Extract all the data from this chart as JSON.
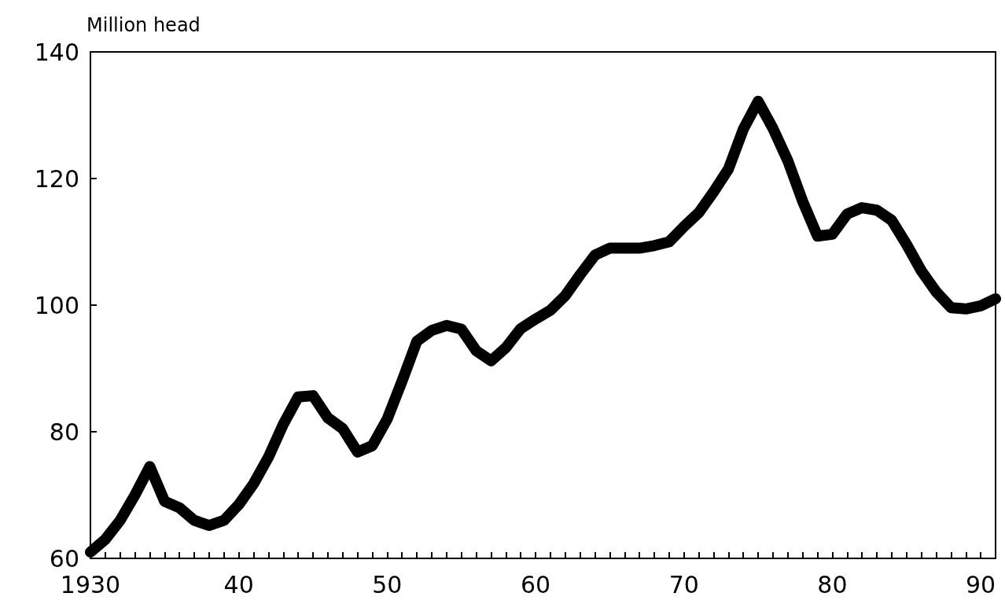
{
  "chart_data": {
    "type": "line",
    "ylabel": "Million head",
    "x": [
      1930,
      1931,
      1932,
      1933,
      1934,
      1935,
      1936,
      1937,
      1938,
      1939,
      1940,
      1941,
      1942,
      1943,
      1944,
      1945,
      1946,
      1947,
      1948,
      1949,
      1950,
      1951,
      1952,
      1953,
      1954,
      1955,
      1956,
      1957,
      1958,
      1959,
      1960,
      1961,
      1962,
      1963,
      1964,
      1965,
      1966,
      1967,
      1968,
      1969,
      1970,
      1971,
      1972,
      1973,
      1974,
      1975,
      1976,
      1977,
      1978,
      1979,
      1980,
      1981,
      1982,
      1983,
      1984,
      1985,
      1986,
      1987,
      1988,
      1989,
      1990,
      1991
    ],
    "series": [
      {
        "color": "#000000",
        "values": [
          61,
          63,
          66,
          70,
          74.5,
          69,
          68,
          66,
          65.2,
          66,
          68.5,
          71.8,
          76,
          81.2,
          85.5,
          85.7,
          82.2,
          80.5,
          76.8,
          77.8,
          82,
          88,
          94.3,
          96,
          96.8,
          96.2,
          92.8,
          91.2,
          93.3,
          96.3,
          97.8,
          99.2,
          101.5,
          104.8,
          107.9,
          109,
          109,
          109,
          109.4,
          110,
          112.4,
          114.6,
          117.9,
          121.5,
          127.8,
          132.2,
          127.9,
          122.8,
          116.4,
          110.9,
          111.2,
          114.4,
          115.4,
          115,
          113.4,
          109.6,
          105.4,
          102.1,
          99.6,
          99.4,
          99.9,
          101
        ]
      }
    ],
    "xlim": [
      1930,
      1991
    ],
    "xticks": [
      {
        "value": 1930,
        "label": "1930"
      },
      {
        "value": 1931,
        "label": null
      },
      {
        "value": 1932,
        "label": null
      },
      {
        "value": 1933,
        "label": null
      },
      {
        "value": 1934,
        "label": null
      },
      {
        "value": 1935,
        "label": null
      },
      {
        "value": 1936,
        "label": null
      },
      {
        "value": 1937,
        "label": null
      },
      {
        "value": 1938,
        "label": null
      },
      {
        "value": 1939,
        "label": null
      },
      {
        "value": 1940,
        "label": "40"
      },
      {
        "value": 1941,
        "label": null
      },
      {
        "value": 1942,
        "label": null
      },
      {
        "value": 1943,
        "label": null
      },
      {
        "value": 1944,
        "label": null
      },
      {
        "value": 1945,
        "label": null
      },
      {
        "value": 1946,
        "label": null
      },
      {
        "value": 1947,
        "label": null
      },
      {
        "value": 1948,
        "label": null
      },
      {
        "value": 1949,
        "label": null
      },
      {
        "value": 1950,
        "label": "50"
      },
      {
        "value": 1951,
        "label": null
      },
      {
        "value": 1952,
        "label": null
      },
      {
        "value": 1953,
        "label": null
      },
      {
        "value": 1954,
        "label": null
      },
      {
        "value": 1955,
        "label": null
      },
      {
        "value": 1956,
        "label": null
      },
      {
        "value": 1957,
        "label": null
      },
      {
        "value": 1958,
        "label": null
      },
      {
        "value": 1959,
        "label": null
      },
      {
        "value": 1960,
        "label": "60"
      },
      {
        "value": 1961,
        "label": null
      },
      {
        "value": 1962,
        "label": null
      },
      {
        "value": 1963,
        "label": null
      },
      {
        "value": 1964,
        "label": null
      },
      {
        "value": 1965,
        "label": null
      },
      {
        "value": 1966,
        "label": null
      },
      {
        "value": 1967,
        "label": null
      },
      {
        "value": 1968,
        "label": null
      },
      {
        "value": 1969,
        "label": null
      },
      {
        "value": 1970,
        "label": "70"
      },
      {
        "value": 1971,
        "label": null
      },
      {
        "value": 1972,
        "label": null
      },
      {
        "value": 1973,
        "label": null
      },
      {
        "value": 1974,
        "label": null
      },
      {
        "value": 1975,
        "label": null
      },
      {
        "value": 1976,
        "label": null
      },
      {
        "value": 1977,
        "label": null
      },
      {
        "value": 1978,
        "label": null
      },
      {
        "value": 1979,
        "label": null
      },
      {
        "value": 1980,
        "label": "80"
      },
      {
        "value": 1981,
        "label": null
      },
      {
        "value": 1982,
        "label": null
      },
      {
        "value": 1983,
        "label": null
      },
      {
        "value": 1984,
        "label": null
      },
      {
        "value": 1985,
        "label": null
      },
      {
        "value": 1986,
        "label": null
      },
      {
        "value": 1987,
        "label": null
      },
      {
        "value": 1988,
        "label": null
      },
      {
        "value": 1989,
        "label": null
      },
      {
        "value": 1990,
        "label": "90"
      },
      {
        "value": 1991,
        "label": null
      }
    ],
    "ylim": [
      60,
      140
    ],
    "yticks": [
      60,
      80,
      100,
      120,
      140
    ],
    "grid": false,
    "line_style": "solid"
  }
}
